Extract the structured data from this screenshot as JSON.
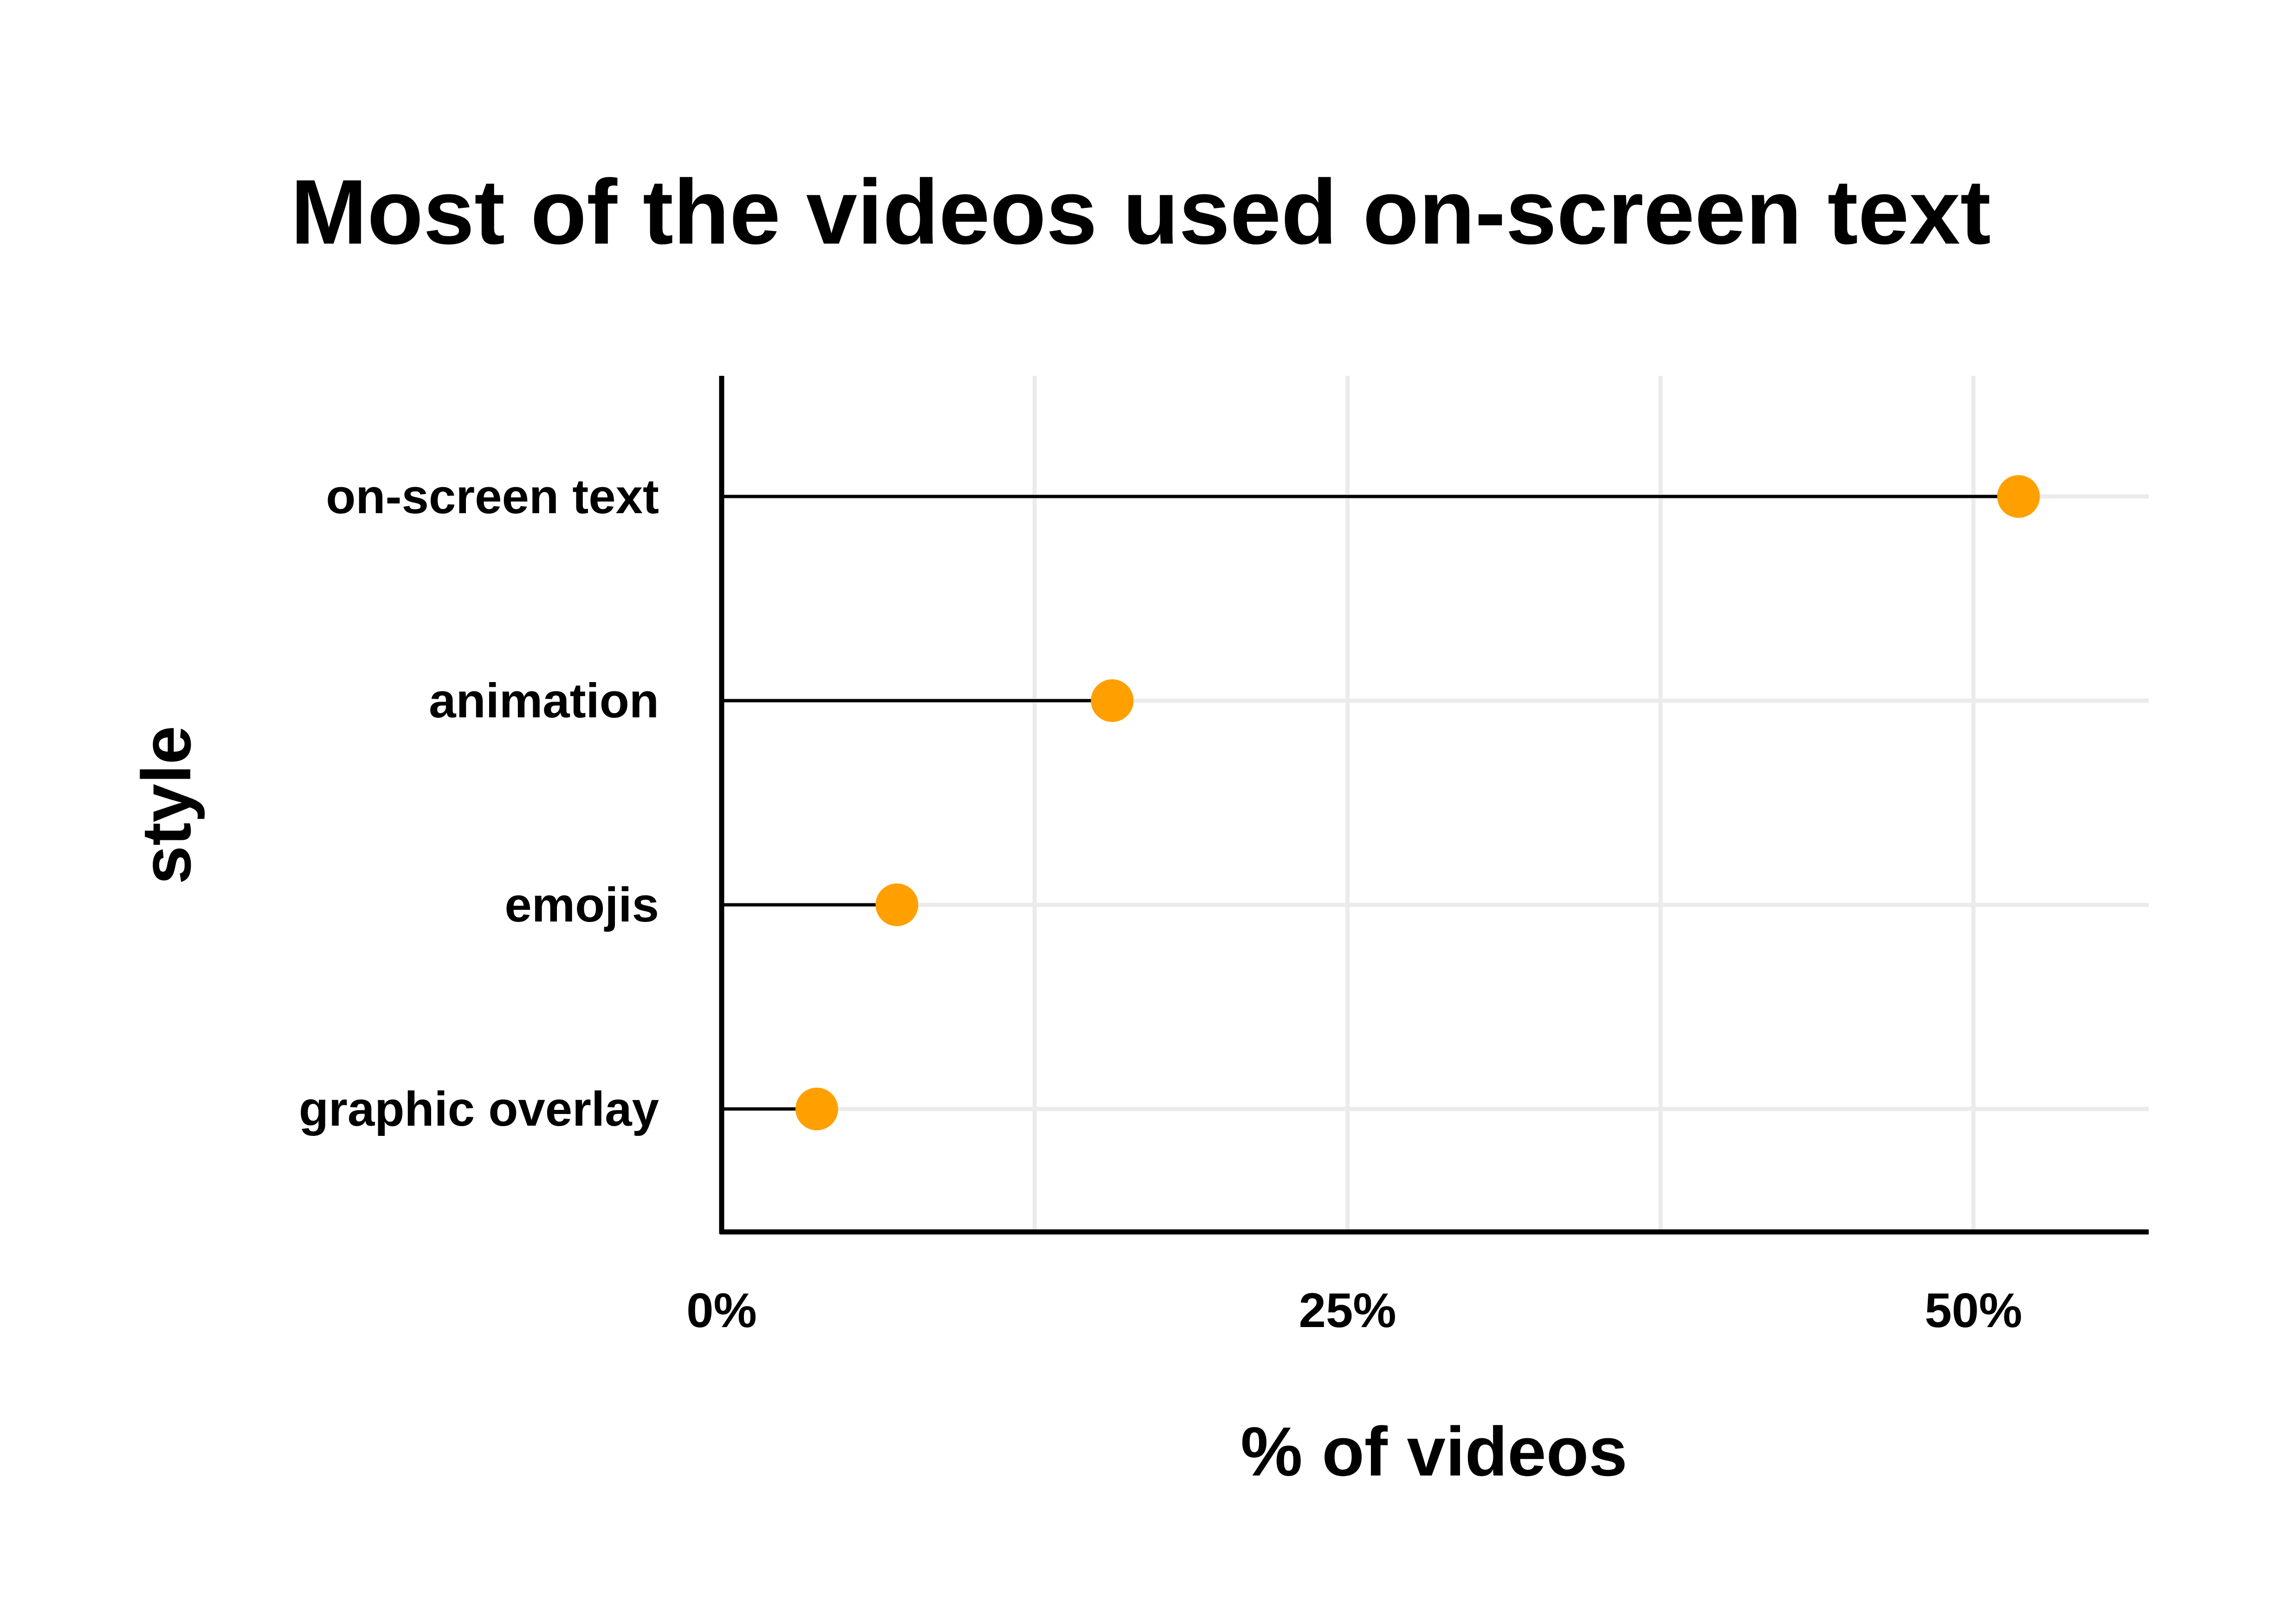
{
  "chart_data": {
    "type": "lollipop",
    "title": "Most of the videos used on-screen text",
    "xlabel": "% of videos",
    "ylabel": "style",
    "categories": [
      "on-screen text",
      "animation",
      "emojis",
      "graphic overlay"
    ],
    "values": [
      51.8,
      15.6,
      7.0,
      3.8
    ],
    "xlim": [
      0,
      57
    ],
    "x_ticks": [
      0,
      25,
      50
    ],
    "x_tick_labels": [
      "0%",
      "25%",
      "50%"
    ],
    "minor_grid_x": [
      12.5,
      37.5
    ],
    "grid": true,
    "legend": "none",
    "colors": {
      "point": "#FFA000",
      "stem": "#000000",
      "grid": "#EBEBEB",
      "axis": "#000000"
    }
  }
}
